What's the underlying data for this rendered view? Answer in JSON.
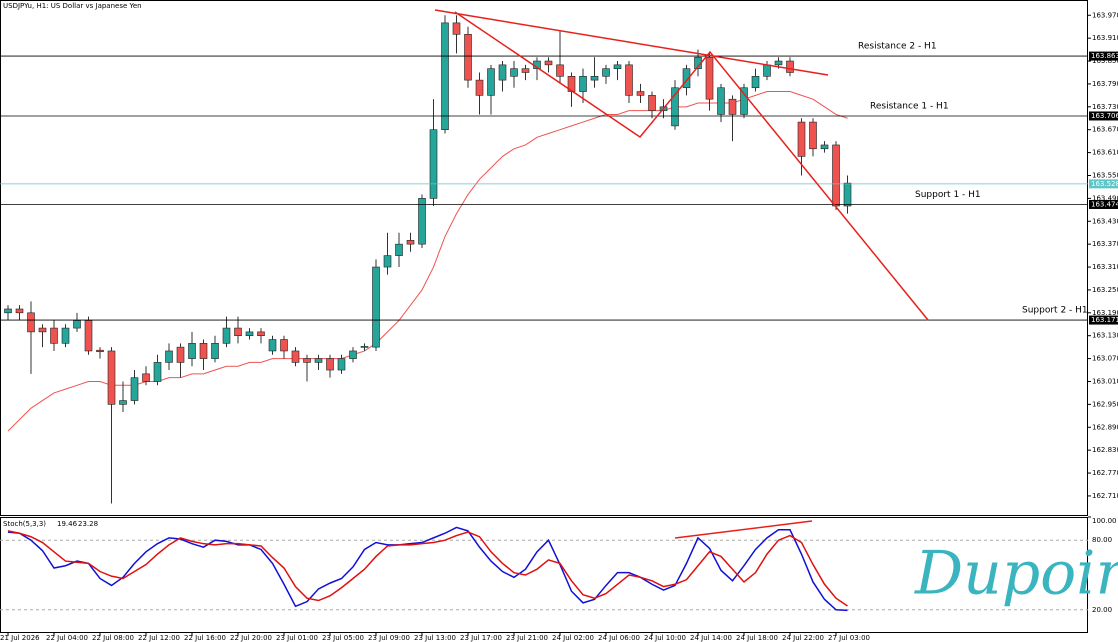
{
  "header": {
    "title": "USDJPYu, H1:  US Dollar vs Japanese Yen"
  },
  "logo": "Dupoin",
  "chart_data": [
    {
      "type": "candlestick",
      "categories": [
        "21 Jul 2026",
        null,
        null,
        null,
        "22 Jul 04:00",
        null,
        null,
        null,
        "22 Jul 08:00",
        null,
        null,
        null,
        "22 Jul 12:00",
        null,
        null,
        null,
        "22 Jul 16:00",
        null,
        null,
        null,
        "22 Jul 20:00",
        null,
        null,
        null,
        "23 Jul 01:00",
        null,
        null,
        null,
        "23 Jul 05:00",
        null,
        null,
        null,
        "23 Jul 09:00",
        null,
        null,
        null,
        "23 Jul 13:00",
        null,
        null,
        null,
        "23 Jul 17:00",
        null,
        null,
        null,
        "23 Jul 21:00",
        null,
        null,
        null,
        "24 Jul 02:00",
        null,
        null,
        null,
        "24 Jul 06:00",
        null,
        null,
        null,
        "24 Jul 10:00",
        null,
        null,
        null,
        "24 Jul 14:00",
        null,
        null,
        null,
        "24 Jul 18:00",
        null,
        null,
        null,
        "24 Jul 22:00",
        null,
        null,
        null,
        "27 Jul 03:00",
        null
      ],
      "open": [
        163.19,
        163.2,
        163.19,
        163.15,
        163.15,
        163.11,
        163.15,
        163.17,
        163.092,
        163.09,
        162.95,
        162.96,
        163.03,
        163.01,
        163.06,
        163.1,
        163.07,
        163.11,
        163.07,
        163.11,
        163.15,
        163.13,
        163.14,
        163.09,
        163.12,
        163.09,
        163.07,
        163.06,
        163.07,
        163.04,
        163.07,
        163.1,
        163.1,
        163.31,
        163.34,
        163.38,
        163.37,
        163.49,
        163.67,
        163.95,
        163.92,
        163.8,
        163.76,
        163.8,
        163.81,
        163.83,
        163.83,
        163.85,
        163.84,
        163.81,
        163.77,
        163.8,
        163.81,
        163.83,
        163.84,
        163.77,
        163.76,
        163.72,
        163.68,
        163.78,
        163.83,
        163.86,
        163.71,
        163.75,
        163.71,
        163.78,
        163.81,
        163.84,
        163.85,
        163.69,
        163.69,
        163.62,
        163.63,
        163.47
      ],
      "high": [
        163.21,
        163.21,
        163.22,
        163.16,
        163.17,
        163.16,
        163.19,
        163.18,
        163.1,
        163.1,
        163.01,
        163.04,
        163.05,
        163.08,
        163.11,
        163.11,
        163.14,
        163.12,
        163.13,
        163.18,
        163.18,
        163.15,
        163.15,
        163.13,
        163.13,
        163.1,
        163.08,
        163.08,
        163.08,
        163.08,
        163.1,
        163.11,
        163.33,
        163.4,
        163.4,
        163.4,
        163.5,
        163.75,
        163.97,
        163.97,
        163.94,
        163.82,
        163.84,
        163.85,
        163.85,
        163.84,
        163.86,
        163.86,
        163.93,
        163.82,
        163.83,
        163.86,
        163.84,
        163.85,
        163.85,
        163.79,
        163.77,
        163.75,
        163.8,
        163.84,
        163.88,
        163.87,
        163.79,
        163.76,
        163.79,
        163.83,
        163.85,
        163.86,
        163.86,
        163.7,
        163.7,
        163.64,
        163.64,
        163.55
      ],
      "low": [
        163.17,
        163.17,
        163.03,
        163.1,
        163.09,
        163.1,
        163.14,
        163.08,
        163.07,
        162.69,
        162.93,
        162.95,
        163.0,
        163.0,
        163.04,
        163.02,
        163.05,
        163.04,
        163.06,
        163.1,
        163.11,
        163.12,
        163.11,
        163.08,
        163.07,
        163.05,
        163.01,
        163.04,
        163.02,
        163.03,
        163.06,
        163.09,
        163.09,
        163.29,
        163.31,
        163.35,
        163.36,
        163.47,
        163.66,
        163.87,
        163.78,
        163.71,
        163.71,
        163.77,
        163.78,
        163.8,
        163.8,
        163.82,
        163.79,
        163.73,
        163.74,
        163.78,
        163.79,
        163.8,
        163.74,
        163.74,
        163.7,
        163.7,
        163.67,
        163.76,
        163.81,
        163.72,
        163.69,
        163.64,
        163.7,
        163.77,
        163.8,
        163.83,
        163.81,
        163.55,
        163.6,
        163.61,
        163.46,
        163.45
      ],
      "close": [
        163.2,
        163.19,
        163.14,
        163.14,
        163.11,
        163.15,
        163.17,
        163.09,
        163.088,
        162.95,
        162.96,
        163.02,
        163.01,
        163.06,
        163.09,
        163.06,
        163.11,
        163.07,
        163.11,
        163.15,
        163.13,
        163.14,
        163.13,
        163.12,
        163.09,
        163.06,
        163.06,
        163.07,
        163.04,
        163.07,
        163.09,
        163.102,
        163.31,
        163.34,
        163.37,
        163.37,
        163.49,
        163.67,
        163.95,
        163.92,
        163.8,
        163.76,
        163.83,
        163.84,
        163.83,
        163.82,
        163.85,
        163.84,
        163.81,
        163.77,
        163.81,
        163.81,
        163.83,
        163.84,
        163.76,
        163.76,
        163.72,
        163.73,
        163.78,
        163.83,
        163.86,
        163.75,
        163.78,
        163.71,
        163.78,
        163.81,
        163.84,
        163.85,
        163.82,
        163.6,
        163.62,
        163.63,
        163.47,
        163.53
      ],
      "up_color": "#26a69a",
      "down_color": "#ef5350",
      "moving_average": {
        "color": "#ef5350",
        "values": [
          162.88,
          162.91,
          162.94,
          162.96,
          162.98,
          162.99,
          163.0,
          163.01,
          163.01,
          163.0,
          163.0,
          163.0,
          163.01,
          163.01,
          163.02,
          163.02,
          163.03,
          163.03,
          163.04,
          163.05,
          163.05,
          163.06,
          163.06,
          163.07,
          163.07,
          163.07,
          163.07,
          163.07,
          163.07,
          163.07,
          163.08,
          163.09,
          163.11,
          163.14,
          163.17,
          163.21,
          163.25,
          163.31,
          163.39,
          163.45,
          163.5,
          163.54,
          163.57,
          163.6,
          163.62,
          163.63,
          163.65,
          163.66,
          163.67,
          163.68,
          163.69,
          163.7,
          163.71,
          163.71,
          163.72,
          163.72,
          163.72,
          163.72,
          163.73,
          163.73,
          163.74,
          163.74,
          163.74,
          163.74,
          163.75,
          163.76,
          163.77,
          163.77,
          163.77,
          163.76,
          163.75,
          163.73,
          163.71,
          163.7
        ]
      },
      "levels": [
        {
          "name": "Resistance 2 - H1",
          "value": 163.863,
          "color": "#000000"
        },
        {
          "name": "Resistance 1 - H1",
          "value": 163.706,
          "color": "#000000"
        },
        {
          "name": "Support 1 - H1",
          "value": 163.474,
          "color": "#000000"
        },
        {
          "name": "Support 2 - H1",
          "value": 163.171,
          "color": "#000000"
        }
      ],
      "current_price": {
        "value": 163.528,
        "color": "#5fc6c6"
      },
      "ylim": [
        162.66,
        164.01
      ],
      "yticks": [
        {
          "value": 163.97,
          "label": "163.970"
        },
        {
          "value": 163.91,
          "label": "163.910"
        },
        {
          "value": 163.85,
          "label": "163.850"
        },
        {
          "value": 163.79,
          "label": "163.790"
        },
        {
          "value": 163.73,
          "label": "163.730"
        },
        {
          "value": 163.67,
          "label": "163.670"
        },
        {
          "value": 163.61,
          "label": "163.610"
        },
        {
          "value": 163.55,
          "label": "163.550"
        },
        {
          "value": 163.49,
          "label": "163.490"
        },
        {
          "value": 163.43,
          "label": "163.430"
        },
        {
          "value": 163.37,
          "label": "163.370"
        },
        {
          "value": 163.31,
          "label": "163.310"
        },
        {
          "value": 163.25,
          "label": "163.250"
        },
        {
          "value": 163.19,
          "label": "163.190"
        },
        {
          "value": 163.13,
          "label": "163.130"
        },
        {
          "value": 163.07,
          "label": "163.070"
        },
        {
          "value": 163.01,
          "label": "163.010"
        },
        {
          "value": 162.95,
          "label": "162.950"
        },
        {
          "value": 162.89,
          "label": "162.890"
        },
        {
          "value": 162.83,
          "label": "162.830"
        },
        {
          "value": 162.77,
          "label": "162.770"
        },
        {
          "value": 162.71,
          "label": "162.710"
        }
      ]
    },
    {
      "type": "line",
      "title": "Stoch(5,3,3)",
      "series": [
        {
          "color": "#1010d8",
          "values": [
            87,
            86,
            80,
            71,
            56,
            58,
            62,
            60,
            47,
            41,
            48,
            60,
            70,
            77,
            82,
            81,
            77,
            74,
            80,
            79,
            76,
            76,
            72,
            60,
            42,
            23,
            27,
            38,
            43,
            47,
            57,
            72,
            78,
            76,
            76,
            77,
            78,
            82,
            86,
            91,
            88,
            74,
            62,
            53,
            48,
            55,
            70,
            80,
            59,
            36,
            26,
            29,
            41,
            52,
            52,
            48,
            42,
            37,
            41,
            60,
            82,
            73,
            54,
            45,
            58,
            72,
            82,
            89,
            89,
            68,
            44,
            29,
            20,
            19.46
          ]
        },
        {
          "color": "#e01010",
          "values": [
            88,
            86,
            83,
            78,
            70,
            62,
            61,
            60,
            53,
            49,
            47,
            53,
            59,
            68,
            76,
            82,
            79,
            77,
            76,
            77,
            77,
            76,
            75,
            65,
            56,
            40,
            30,
            28,
            32,
            39,
            47,
            55,
            66,
            75,
            76,
            76,
            77,
            78,
            80,
            84,
            87,
            83,
            70,
            60,
            52,
            50,
            55,
            63,
            60,
            45,
            33,
            30,
            34,
            42,
            50,
            48,
            45,
            40,
            42,
            46,
            58,
            70,
            66,
            55,
            44,
            52,
            68,
            80,
            84,
            78,
            59,
            42,
            30,
            23.28
          ]
        }
      ],
      "ylim": [
        0,
        100
      ],
      "yticks": [
        {
          "value": 20,
          "label": "20.00"
        },
        {
          "value": 80,
          "label": "80.00"
        },
        {
          "value": 100,
          "label": "100.00"
        }
      ]
    }
  ]
}
